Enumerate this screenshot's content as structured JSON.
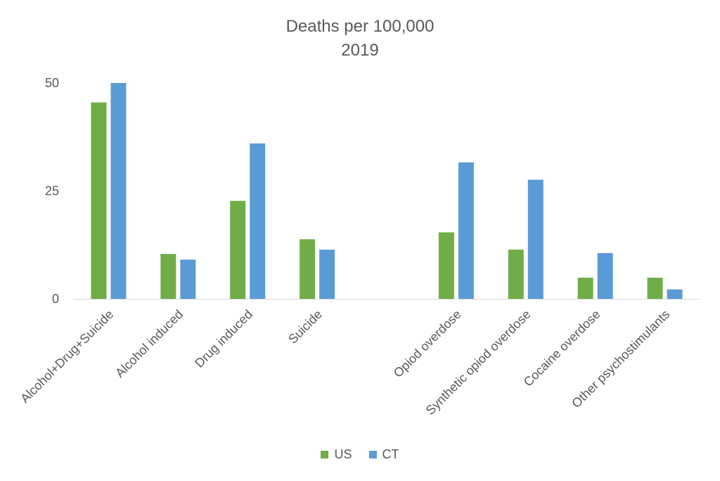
{
  "chart_data": {
    "type": "bar",
    "title": "Deaths per 100,000",
    "subtitle": "2019",
    "categories": [
      "Alcohol+Drug+Suicide",
      "Alcohol induced",
      "Drug induced",
      "Suicide",
      "",
      "Opiod overdose",
      "Synthetic opiod overdose",
      "Cocaine overdose",
      "Other psychostimulants"
    ],
    "series": [
      {
        "name": "US",
        "color": "#70ad47",
        "values": [
          45.5,
          10.4,
          22.7,
          13.8,
          null,
          15.4,
          11.4,
          4.9,
          4.9
        ]
      },
      {
        "name": "CT",
        "color": "#5b9bd5",
        "values": [
          50.0,
          9.1,
          36.0,
          11.4,
          null,
          31.6,
          27.6,
          10.6,
          2.2
        ]
      }
    ],
    "ylim": [
      0,
      50
    ],
    "yticks": [
      0,
      25,
      50
    ],
    "grid": false,
    "legend": "bottom-center",
    "xlabel": "",
    "ylabel": ""
  }
}
